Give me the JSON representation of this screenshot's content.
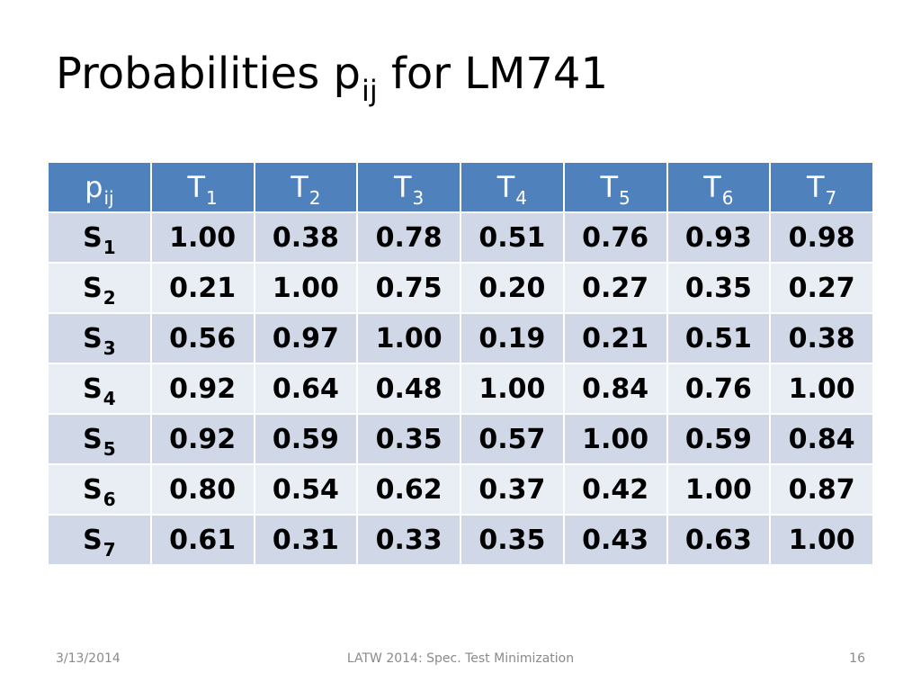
{
  "title": {
    "prefix": "Probabilities p",
    "subscript": "ij",
    "suffix": " for LM741"
  },
  "table": {
    "corner": {
      "base": "p",
      "sub": "ij"
    },
    "columns": [
      {
        "base": "T",
        "sub": "1"
      },
      {
        "base": "T",
        "sub": "2"
      },
      {
        "base": "T",
        "sub": "3"
      },
      {
        "base": "T",
        "sub": "4"
      },
      {
        "base": "T",
        "sub": "5"
      },
      {
        "base": "T",
        "sub": "6"
      },
      {
        "base": "T",
        "sub": "7"
      }
    ],
    "rows": [
      {
        "label": {
          "base": "S",
          "sub": "1"
        },
        "values": [
          "1.00",
          "0.38",
          "0.78",
          "0.51",
          "0.76",
          "0.93",
          "0.98"
        ]
      },
      {
        "label": {
          "base": "S",
          "sub": "2"
        },
        "values": [
          "0.21",
          "1.00",
          "0.75",
          "0.20",
          "0.27",
          "0.35",
          "0.27"
        ]
      },
      {
        "label": {
          "base": "S",
          "sub": "3"
        },
        "values": [
          "0.56",
          "0.97",
          "1.00",
          "0.19",
          "0.21",
          "0.51",
          "0.38"
        ]
      },
      {
        "label": {
          "base": "S",
          "sub": "4"
        },
        "values": [
          "0.92",
          "0.64",
          "0.48",
          "1.00",
          "0.84",
          "0.76",
          "1.00"
        ]
      },
      {
        "label": {
          "base": "S",
          "sub": "5"
        },
        "values": [
          "0.92",
          "0.59",
          "0.35",
          "0.57",
          "1.00",
          "0.59",
          "0.84"
        ]
      },
      {
        "label": {
          "base": "S",
          "sub": "6"
        },
        "values": [
          "0.80",
          "0.54",
          "0.62",
          "0.37",
          "0.42",
          "1.00",
          "0.87"
        ]
      },
      {
        "label": {
          "base": "S",
          "sub": "7"
        },
        "values": [
          "0.61",
          "0.31",
          "0.33",
          "0.35",
          "0.43",
          "0.63",
          "1.00"
        ]
      }
    ]
  },
  "footer": {
    "date": "3/13/2014",
    "conference": "LATW 2014: Spec. Test Minimization",
    "page": "16"
  },
  "colors": {
    "header_bg": "#4f81bd",
    "row_dark": "#d0d8e8",
    "row_light": "#e9edf4"
  }
}
